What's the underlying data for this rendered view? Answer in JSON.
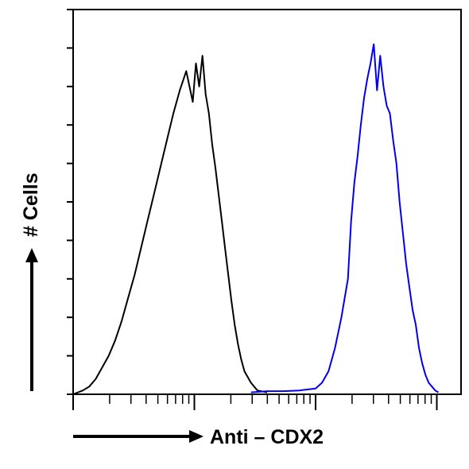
{
  "chart_data": {
    "type": "line",
    "title": "",
    "xlabel": "Anti – CDX2",
    "ylabel": "# Cells",
    "xlim": [
      0,
      100
    ],
    "ylim": [
      0,
      100
    ],
    "x_scale": "log",
    "grid": false,
    "legend": "none",
    "series": [
      {
        "color": "#000000",
        "points": [
          [
            0,
            0
          ],
          [
            3,
            1
          ],
          [
            5,
            2
          ],
          [
            7,
            4
          ],
          [
            9,
            7
          ],
          [
            11,
            10
          ],
          [
            13,
            14
          ],
          [
            15,
            19
          ],
          [
            17,
            25
          ],
          [
            19,
            31
          ],
          [
            21,
            38
          ],
          [
            23,
            45
          ],
          [
            25,
            52
          ],
          [
            27,
            59
          ],
          [
            29,
            66
          ],
          [
            31,
            73
          ],
          [
            33,
            79
          ],
          [
            35,
            84
          ],
          [
            37,
            76
          ],
          [
            38,
            86
          ],
          [
            39,
            80
          ],
          [
            40,
            88
          ],
          [
            41,
            78
          ],
          [
            42,
            73
          ],
          [
            43,
            65
          ],
          [
            44,
            59
          ],
          [
            45,
            52
          ],
          [
            46,
            45
          ],
          [
            47,
            38
          ],
          [
            48,
            31
          ],
          [
            49,
            24
          ],
          [
            50,
            18
          ],
          [
            51,
            13
          ],
          [
            52,
            9
          ],
          [
            53,
            6
          ],
          [
            55,
            3
          ],
          [
            57,
            1
          ],
          [
            60,
            0.5
          ]
        ]
      },
      {
        "color": "#0000ee",
        "points": [
          [
            55,
            0.5
          ],
          [
            60,
            0.8
          ],
          [
            65,
            0.8
          ],
          [
            70,
            1
          ],
          [
            75,
            1.5
          ],
          [
            77,
            3
          ],
          [
            79,
            6
          ],
          [
            81,
            12
          ],
          [
            83,
            20
          ],
          [
            85,
            30
          ],
          [
            86,
            45
          ],
          [
            87,
            55
          ],
          [
            88,
            62
          ],
          [
            89,
            70
          ],
          [
            90,
            77
          ],
          [
            91,
            82
          ],
          [
            92,
            86
          ],
          [
            93,
            91
          ],
          [
            94,
            79
          ],
          [
            95,
            88
          ],
          [
            96,
            80
          ],
          [
            97,
            75
          ],
          [
            98,
            73
          ],
          [
            99,
            66
          ],
          [
            100,
            60
          ],
          [
            101,
            50
          ],
          [
            102,
            42
          ],
          [
            103,
            34
          ],
          [
            104,
            28
          ],
          [
            105,
            22
          ],
          [
            106,
            18
          ],
          [
            107,
            12
          ],
          [
            108,
            8
          ],
          [
            109,
            5
          ],
          [
            110,
            3
          ],
          [
            111,
            2
          ],
          [
            112,
            1
          ],
          [
            113,
            0.5
          ]
        ]
      }
    ]
  }
}
